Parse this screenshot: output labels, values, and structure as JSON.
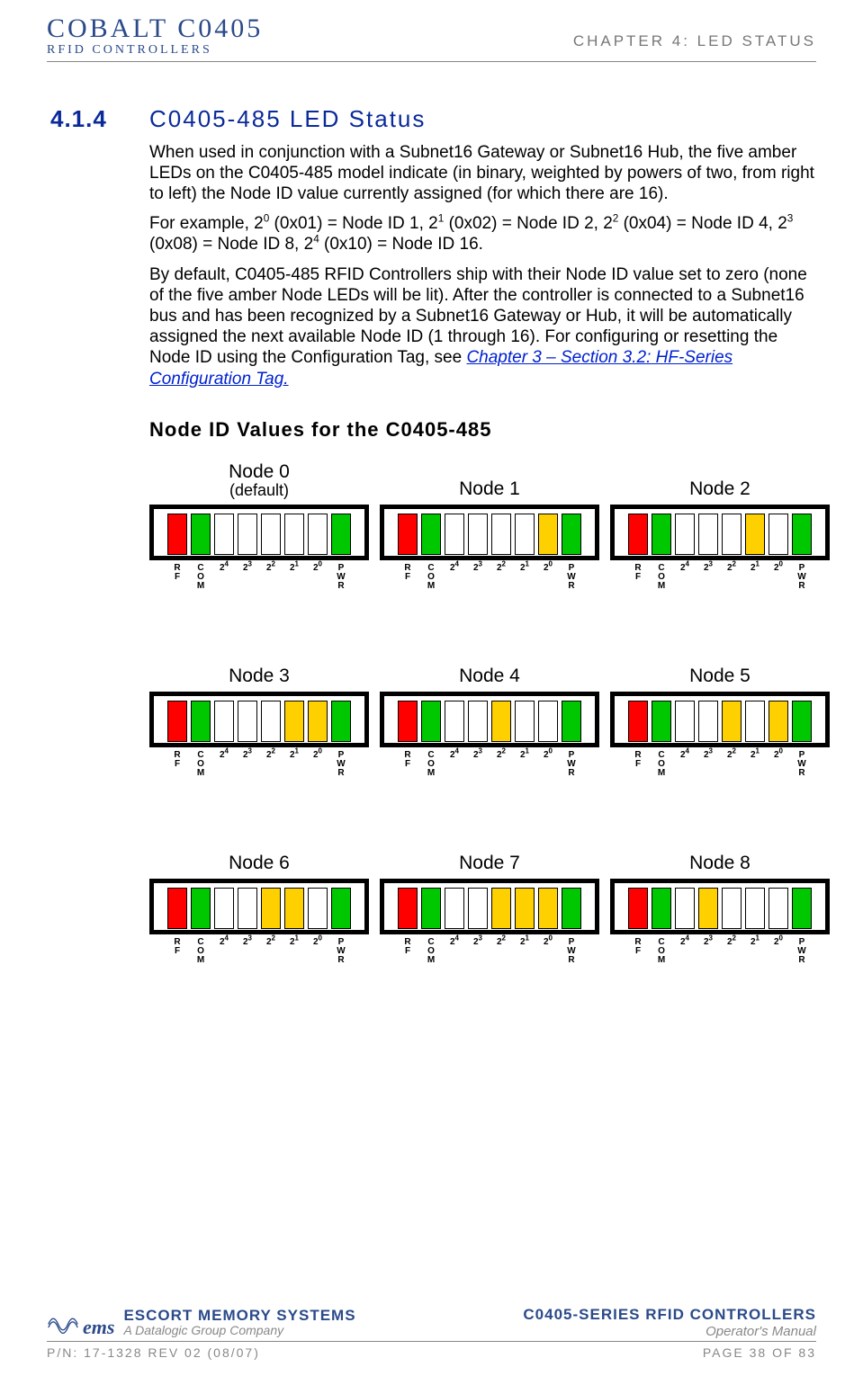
{
  "header": {
    "logo_main": "COBALT C0405",
    "logo_sub": "RFID CONTROLLERS",
    "chapter": "CHAPTER 4: LED STATUS"
  },
  "section": {
    "number": "4.1.4",
    "title": "C0405-485 LED Status"
  },
  "paragraphs": {
    "p1": "When used in conjunction with a Subnet16 Gateway or Subnet16 Hub, the five amber LEDs on the C0405-485 model indicate (in binary, weighted by powers of two, from right to left) the Node ID value currently assigned (for which there are 16).",
    "p2_pre": "For example, 2",
    "p2_a": " (0x01) = Node ID 1, 2",
    "p2_b": " (0x02) = Node ID 2, 2",
    "p2_c": " (0x04) = Node ID 4, 2",
    "p2_d": " (0x08) = Node ID 8, 2",
    "p2_e": " (0x10) = Node ID 16.",
    "p3_a": "By default, C0405-485 RFID Controllers ship with their Node ID value set to zero (none of the five amber Node LEDs will be lit). After the controller is connected to a Subnet16 bus and has been recognized by a Subnet16 Gateway or Hub, it will be automatically assigned the next available Node ID (1 through 16). For configuring or resetting the Node ID using the Configuration Tag, see ",
    "p3_link": "Chapter 3 – Section 3.2: HF-Series Configuration Tag.",
    "sub_heading": "Node ID Values for the C0405-485"
  },
  "led_colors": {
    "off": "#ffffff",
    "red": "#ff0000",
    "green": "#00c800",
    "amber": "#ffd000",
    "frame": "#000000"
  },
  "led_labels": [
    "RF",
    "COM",
    "2⁴",
    "2³",
    "2²",
    "2¹",
    "2⁰",
    "PWR"
  ],
  "nodes": [
    {
      "title": "Node 0",
      "subtitle": "(default)",
      "leds": [
        "red",
        "green",
        "off",
        "off",
        "off",
        "off",
        "off",
        "green"
      ]
    },
    {
      "title": "Node 1",
      "subtitle": "",
      "leds": [
        "red",
        "green",
        "off",
        "off",
        "off",
        "off",
        "amber",
        "green"
      ]
    },
    {
      "title": "Node 2",
      "subtitle": "",
      "leds": [
        "red",
        "green",
        "off",
        "off",
        "off",
        "amber",
        "off",
        "green"
      ]
    },
    {
      "title": "Node 3",
      "subtitle": "",
      "leds": [
        "red",
        "green",
        "off",
        "off",
        "off",
        "amber",
        "amber",
        "green"
      ]
    },
    {
      "title": "Node 4",
      "subtitle": "",
      "leds": [
        "red",
        "green",
        "off",
        "off",
        "amber",
        "off",
        "off",
        "green"
      ]
    },
    {
      "title": "Node 5",
      "subtitle": "",
      "leds": [
        "red",
        "green",
        "off",
        "off",
        "amber",
        "off",
        "amber",
        "green"
      ]
    },
    {
      "title": "Node 6",
      "subtitle": "",
      "leds": [
        "red",
        "green",
        "off",
        "off",
        "amber",
        "amber",
        "off",
        "green"
      ]
    },
    {
      "title": "Node 7",
      "subtitle": "",
      "leds": [
        "red",
        "green",
        "off",
        "off",
        "amber",
        "amber",
        "amber",
        "green"
      ]
    },
    {
      "title": "Node 8",
      "subtitle": "",
      "leds": [
        "red",
        "green",
        "off",
        "amber",
        "off",
        "off",
        "off",
        "green"
      ]
    }
  ],
  "footer": {
    "company_l1": "ESCORT MEMORY SYSTEMS",
    "company_l2": "A Datalogic Group Company",
    "ems": "ems",
    "product_l1": "C0405-SERIES RFID CONTROLLERS",
    "product_l2": "Operator's Manual",
    "pn": "P/N: 17-1328 REV 02 (08/07)",
    "page": "PAGE 38 OF 83"
  }
}
